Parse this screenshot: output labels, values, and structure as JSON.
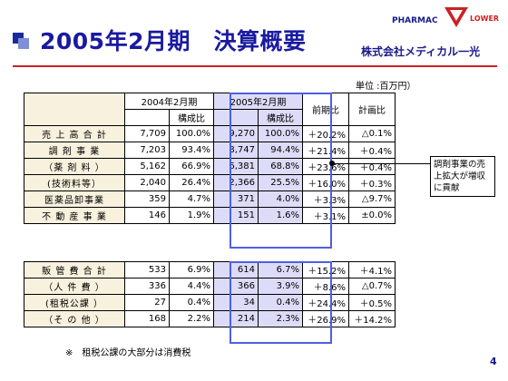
{
  "header": {
    "title": "2005年2月期　決算概要",
    "logo_pharmac": "PHARMAC",
    "logo_lower": "LOWER",
    "company": "株式会社メディカル一光"
  },
  "unit_label": "単位 :百万円）",
  "table_header": {
    "col_2004": "2004年2月期",
    "col_2005": "2005年2月期",
    "ratio": "構成比",
    "yoy": "前期比",
    "plan": "計画比"
  },
  "rows_top": [
    {
      "label": "売 上 高 合 計",
      "v2004": "7,709",
      "r2004": "100.0%",
      "v2005": "9,270",
      "r2005": "100.0%",
      "yoy": "＋20.2%",
      "plan": "△0.1%"
    },
    {
      "label": "調 剤 事 業",
      "v2004": "7,203",
      "r2004": "93.4%",
      "v2005": "8,747",
      "r2005": "94.4%",
      "yoy": "＋21.4%",
      "plan": "＋0.4%"
    },
    {
      "label": "（薬 剤 料 ）",
      "v2004": "5,162",
      "r2004": "66.9%",
      "v2005": "6,381",
      "r2005": "68.8%",
      "yoy": "＋23.6%",
      "plan": "＋0.4%"
    },
    {
      "label": "(技術料等）",
      "v2004": "2,040",
      "r2004": "26.4%",
      "v2005": "2,366",
      "r2005": "25.5%",
      "yoy": "＋16.0%",
      "plan": "＋0.3%"
    },
    {
      "label": "医薬品卸事業",
      "v2004": "359",
      "r2004": "4.7%",
      "v2005": "371",
      "r2005": "4.0%",
      "yoy": "＋3.3%",
      "plan": "△9.7%"
    },
    {
      "label": "不 動 産 事 業",
      "v2004": "146",
      "r2004": "1.9%",
      "v2005": "151",
      "r2005": "1.6%",
      "yoy": "＋3.1%",
      "plan": "±0.0%"
    }
  ],
  "rows_bottom": [
    {
      "label": "販 管 費 合 計",
      "v2004": "533",
      "r2004": "6.9%",
      "v2005": "614",
      "r2005": "6.7%",
      "yoy": "＋15.2%",
      "plan": "＋4.1%"
    },
    {
      "label": "（人 件 費 ）",
      "v2004": "336",
      "r2004": "4.4%",
      "v2005": "366",
      "r2005": "3.9%",
      "yoy": "＋8.6%",
      "plan": "△0.7%"
    },
    {
      "label": "(租税公課 ）",
      "v2004": "27",
      "r2004": "0.4%",
      "v2005": "34",
      "r2005": "0.4%",
      "yoy": "＋24.4%",
      "plan": "＋0.5%"
    },
    {
      "label": "（そ の 他 ）",
      "v2004": "168",
      "r2004": "2.2%",
      "v2005": "214",
      "r2005": "2.3%",
      "yoy": "＋26.9%",
      "plan": "＋14.2%"
    }
  ],
  "callout": "調剤事業の売上拡大が増収に貢献",
  "footnote": "※　租税公課の大部分は消費税",
  "page_number": "4",
  "colors": {
    "title": "#1a1aa0",
    "rule": "#cc2222",
    "highlight": "#dcdcf8",
    "label_bg": "#f7f1de"
  }
}
